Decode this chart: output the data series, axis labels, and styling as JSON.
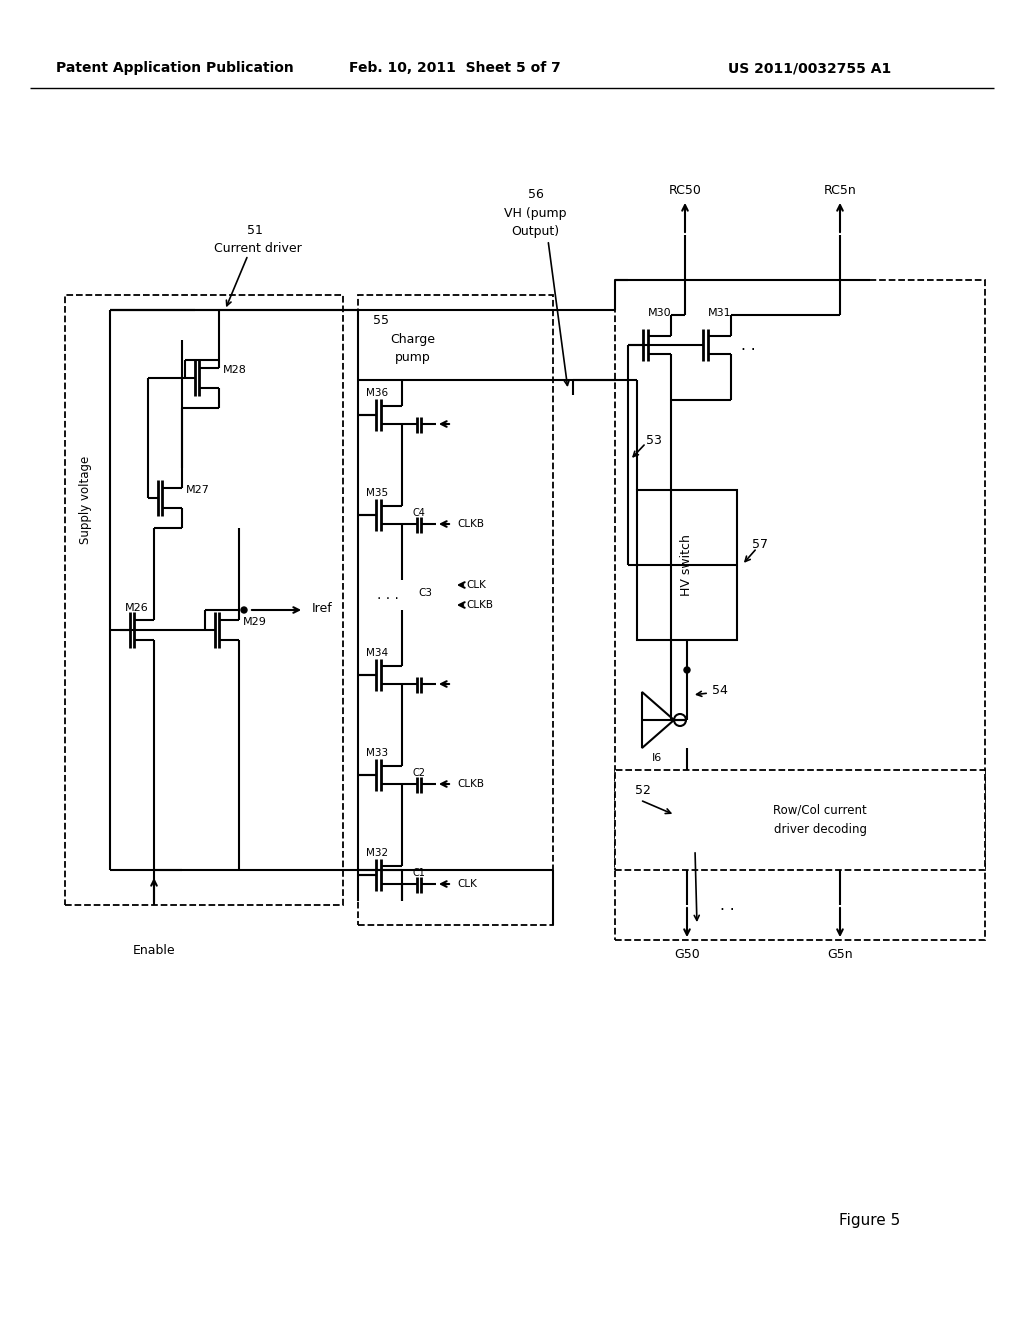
{
  "header_left": "Patent Application Publication",
  "header_center": "Feb. 10, 2011  Sheet 5 of 7",
  "header_right": "US 2011/0032755 A1",
  "figure_label": "Figure 5",
  "bg_color": "#ffffff"
}
